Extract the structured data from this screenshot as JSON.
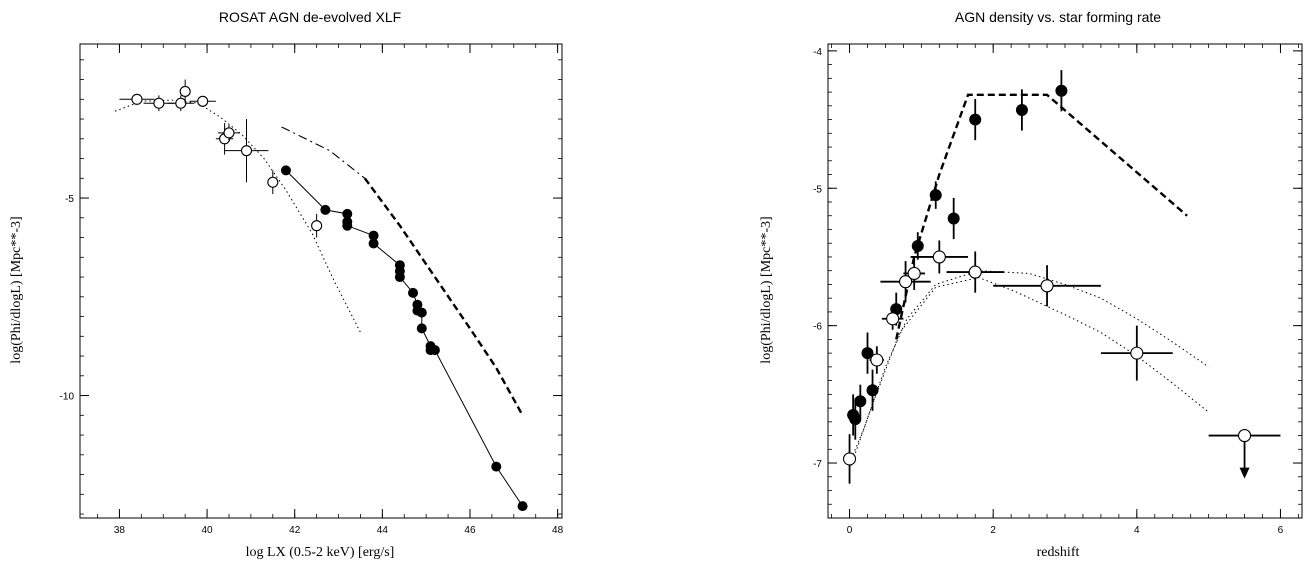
{
  "chart_data": [
    {
      "type": "scatter",
      "title": "ROSAT AGN de-evolved XLF",
      "xlabel": "log LX (0.5-2 keV) [erg/s]",
      "ylabel": "log(Phi/dlogL) [Mpc**-3]",
      "xlim": [
        37.1,
        48.1
      ],
      "ylim": [
        -13.1,
        -1.1
      ],
      "xticks": [
        38,
        40,
        42,
        44,
        46,
        48
      ],
      "yticks": [
        -5,
        -10
      ],
      "grid": false,
      "series": [
        {
          "marker": "open-circle",
          "points": [
            {
              "x": 38.4,
              "y": -2.5,
              "xerr": 0.4,
              "yerr": 0.0
            },
            {
              "x": 38.9,
              "y": -2.6,
              "xerr": 0.35,
              "yerr": 0.2
            },
            {
              "x": 39.4,
              "y": -2.6,
              "xerr": 0.3,
              "yerr": 0.2
            },
            {
              "x": 39.5,
              "y": -2.3,
              "xerr": 0.0,
              "yerr": 0.3
            },
            {
              "x": 39.9,
              "y": -2.55,
              "xerr": 0.3,
              "yerr": 0.0
            },
            {
              "x": 40.4,
              "y": -3.5,
              "xerr": 0.2,
              "yerr": 0.4
            },
            {
              "x": 40.5,
              "y": -3.35,
              "xerr": 0.25,
              "yerr": 0.2
            },
            {
              "x": 40.9,
              "y": -3.8,
              "xerr": 0.5,
              "yerr": 0.8
            },
            {
              "x": 41.5,
              "y": -4.6,
              "xerr": 0.0,
              "yerr": 0.3
            },
            {
              "x": 42.5,
              "y": -5.7,
              "xerr": 0.0,
              "yerr": 0.3
            }
          ]
        },
        {
          "marker": "filled-circle",
          "connected": true,
          "points": [
            {
              "x": 41.8,
              "y": -4.3
            },
            {
              "x": 42.7,
              "y": -5.3
            },
            {
              "x": 43.2,
              "y": -5.4
            },
            {
              "x": 43.2,
              "y": -5.6
            },
            {
              "x": 43.2,
              "y": -5.7
            },
            {
              "x": 43.8,
              "y": -5.95
            },
            {
              "x": 43.8,
              "y": -6.15
            },
            {
              "x": 44.4,
              "y": -6.7
            },
            {
              "x": 44.4,
              "y": -6.85
            },
            {
              "x": 44.4,
              "y": -7.0
            },
            {
              "x": 44.7,
              "y": -7.4
            },
            {
              "x": 44.8,
              "y": -7.7
            },
            {
              "x": 44.8,
              "y": -7.85
            },
            {
              "x": 44.9,
              "y": -7.9
            },
            {
              "x": 44.9,
              "y": -8.3
            },
            {
              "x": 45.1,
              "y": -8.75
            },
            {
              "x": 45.1,
              "y": -8.85
            },
            {
              "x": 45.2,
              "y": -8.85
            },
            {
              "x": 46.6,
              "y": -11.8
            },
            {
              "x": 47.2,
              "y": -12.8
            }
          ]
        }
      ],
      "curves": [
        {
          "style": "dotted",
          "x": [
            37.9,
            38.5,
            39.2,
            39.8,
            40.3,
            40.8,
            41.3,
            41.8,
            42.4,
            42.9,
            43.5
          ],
          "y": [
            -2.8,
            -2.55,
            -2.52,
            -2.6,
            -2.95,
            -3.4,
            -4.0,
            -4.8,
            -5.9,
            -7.1,
            -8.4
          ]
        },
        {
          "style": "dash-dot",
          "x": [
            41.7,
            42.8,
            43.6
          ],
          "y": [
            -3.2,
            -3.8,
            -4.5
          ]
        },
        {
          "style": "dashed",
          "x": [
            43.6,
            44.4,
            45.2,
            46.0,
            46.6,
            47.2
          ],
          "y": [
            -4.5,
            -5.7,
            -7.0,
            -8.3,
            -9.3,
            -10.5
          ]
        }
      ]
    },
    {
      "type": "scatter",
      "title": "AGN density vs. star forming rate",
      "xlabel": "redshift",
      "ylabel": "log(Phi/dlogL) [Mpc**-3]",
      "xlim": [
        -0.3,
        6.3
      ],
      "ylim": [
        -7.4,
        -3.95
      ],
      "xticks": [
        0,
        2,
        4,
        6
      ],
      "yticks": [
        -4,
        -5,
        -6,
        -7
      ],
      "grid": false,
      "series": [
        {
          "marker": "filled-circle",
          "points": [
            {
              "x": 0.05,
              "y": -6.65,
              "yerr": 0.15
            },
            {
              "x": 0.08,
              "y": -6.68,
              "yerr": 0.15
            },
            {
              "x": 0.15,
              "y": -6.55,
              "yerr": 0.12
            },
            {
              "x": 0.25,
              "y": -6.2,
              "yerr": 0.15
            },
            {
              "x": 0.32,
              "y": -6.47,
              "yerr": 0.15
            },
            {
              "x": 0.65,
              "y": -5.88,
              "yerr": 0.12
            },
            {
              "x": 0.95,
              "y": -5.42,
              "yerr": 0.1
            },
            {
              "x": 1.2,
              "y": -5.05,
              "yerr": 0.1
            },
            {
              "x": 1.45,
              "y": -5.22,
              "yerr": 0.15
            },
            {
              "x": 1.75,
              "y": -4.5,
              "yerr": 0.15
            },
            {
              "x": 2.4,
              "y": -4.43,
              "yerr": 0.15
            },
            {
              "x": 2.95,
              "y": -4.29,
              "yerr": 0.15
            }
          ]
        },
        {
          "marker": "open-circle",
          "points": [
            {
              "x": 0.0,
              "y": -6.97,
              "xerr": 0.0,
              "yerr": 0.18
            },
            {
              "x": 0.38,
              "y": -6.25,
              "xerr": 0.1,
              "yerr": 0.1
            },
            {
              "x": 0.6,
              "y": -5.95,
              "xerr": 0.15,
              "yerr": 0.08
            },
            {
              "x": 0.78,
              "y": -5.68,
              "xerr": 0.35,
              "yerr": 0.15
            },
            {
              "x": 0.9,
              "y": -5.62,
              "xerr": 0.15,
              "yerr": 0.12
            },
            {
              "x": 1.25,
              "y": -5.5,
              "xerr": 0.4,
              "yerr": 0.12
            },
            {
              "x": 1.75,
              "y": -5.61,
              "xerr": 0.4,
              "yerr": 0.15
            },
            {
              "x": 2.75,
              "y": -5.71,
              "xerr": 0.75,
              "yerr": 0.15
            },
            {
              "x": 4.0,
              "y": -6.2,
              "xerr": 0.5,
              "yerr": 0.2
            },
            {
              "x": 5.5,
              "y": -6.8,
              "xerr": 0.5,
              "yerr": 0.0,
              "upper_limit": true
            }
          ]
        }
      ],
      "curves": [
        {
          "style": "dashed",
          "x": [
            0.65,
            0.9,
            1.25,
            1.65,
            2.75,
            4.7
          ],
          "y": [
            -6.1,
            -5.5,
            -4.9,
            -4.32,
            -4.32,
            -5.2
          ]
        },
        {
          "style": "dotted",
          "x": [
            0.0,
            0.2,
            0.5,
            0.8,
            1.2,
            1.8,
            2.5,
            3.0,
            3.5,
            4.0,
            4.5,
            5.0
          ],
          "y": [
            -7.0,
            -6.75,
            -6.3,
            -5.95,
            -5.7,
            -5.6,
            -5.62,
            -5.7,
            -5.8,
            -5.95,
            -6.12,
            -6.3
          ]
        },
        {
          "style": "dotted",
          "x": [
            0.0,
            0.3,
            0.7,
            1.2,
            1.8,
            2.3,
            3.0,
            3.5,
            4.0,
            4.5,
            5.0
          ],
          "y": [
            -7.05,
            -6.6,
            -6.05,
            -5.72,
            -5.65,
            -5.75,
            -5.92,
            -6.05,
            -6.22,
            -6.42,
            -6.63
          ]
        }
      ]
    }
  ]
}
